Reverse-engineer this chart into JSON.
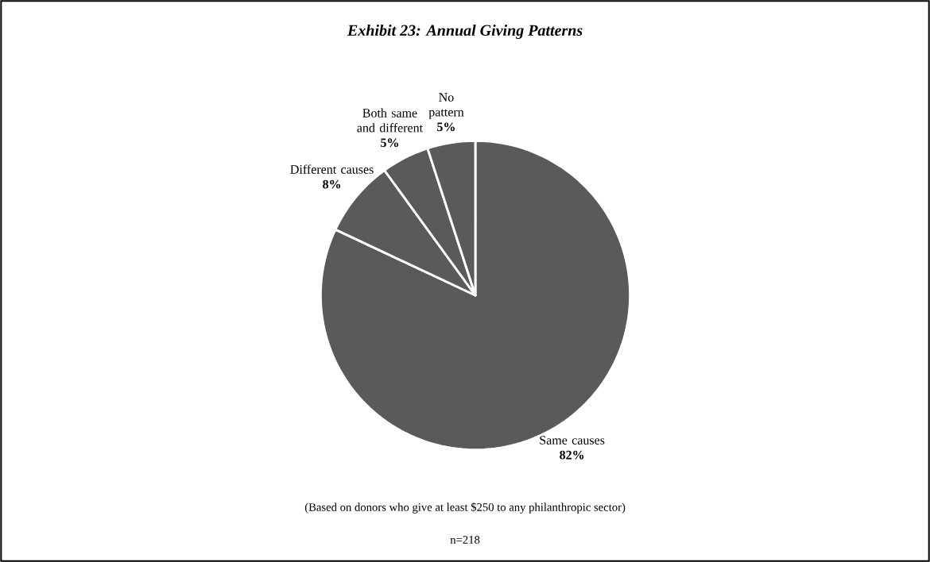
{
  "chart_data": {
    "type": "pie",
    "title": "Exhibit 23:  Annual Giving Patterns",
    "categories": [
      "Same causes",
      "Different causes",
      "Both same and different",
      "No pattern"
    ],
    "values": [
      82,
      8,
      5,
      5
    ],
    "value_labels": [
      "82%",
      "8%",
      "5%",
      "5%"
    ],
    "colors": [
      "#5a5a5a",
      "#5a5a5a",
      "#5a5a5a",
      "#5a5a5a"
    ],
    "annotations": [
      "(Based on donors who give at least $250 to any philanthropic sector)",
      "n=218"
    ]
  }
}
